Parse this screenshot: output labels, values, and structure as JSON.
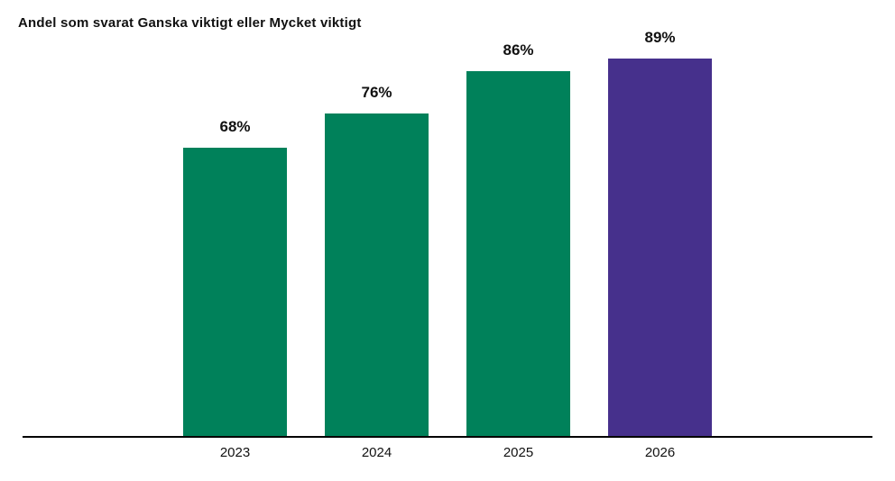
{
  "title": "Andel som svarat Ganska viktigt eller Mycket viktigt",
  "colors": {
    "bar_green": "#00815A",
    "bar_purple": "#46308C",
    "axis": "#000000",
    "text": "#111111",
    "background": "#FFFFFF"
  },
  "chart_data": {
    "type": "bar",
    "title": "Andel som svarat Ganska viktigt eller Mycket viktigt",
    "categories": [
      "2023",
      "2024",
      "2025",
      "2026"
    ],
    "values": [
      68,
      76,
      86,
      89
    ],
    "value_labels": [
      "68%",
      "76%",
      "86%",
      "89%"
    ],
    "unit": "%",
    "xlabel": "",
    "ylabel": "",
    "ylim": [
      0,
      100
    ],
    "grid": false,
    "legend": null,
    "y_axis_visible": false,
    "x_axis_visible": true,
    "bar_colors": [
      "#00815A",
      "#00815A",
      "#00815A",
      "#46308C"
    ],
    "highlight_category": "2026"
  }
}
